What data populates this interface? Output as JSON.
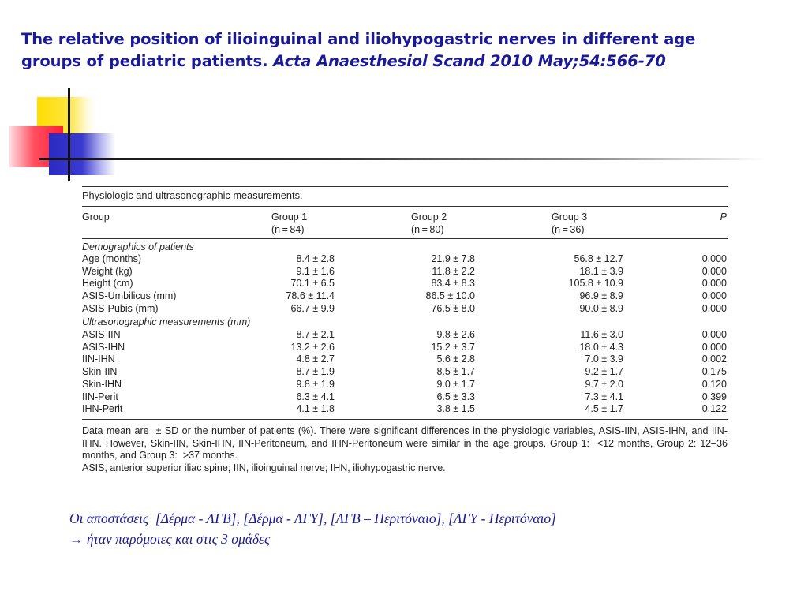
{
  "title": {
    "line1": "The relative position of ilioinguinal and iliohypogastric nerves in different age",
    "line2_plain": "groups of pediatric patients. ",
    "line2_citation": "Acta Anaesthesiol Scand 2010 May;54:566-70"
  },
  "table": {
    "caption": "Physiologic and ultrasonographic measurements.",
    "headers": {
      "group": "Group",
      "g1": "Group 1",
      "g1_n": "(n = 84)",
      "g2": "Group 2",
      "g2_n": "(n = 80)",
      "g3": "Group 3",
      "g3_n": "(n = 36)",
      "p": "P"
    },
    "section1": "Demographics of patients",
    "rows1": [
      [
        "Age (months)",
        "8.4 ± 2.8",
        "21.9 ± 7.8",
        "56.8 ± 12.7",
        "0.000"
      ],
      [
        "Weight (kg)",
        "9.1 ± 1.6",
        "11.8 ± 2.2",
        "18.1 ± 3.9",
        "0.000"
      ],
      [
        "Height (cm)",
        "70.1 ± 6.5",
        "83.4 ± 8.3",
        "105.8 ± 10.9",
        "0.000"
      ],
      [
        "ASIS-Umbilicus (mm)",
        "78.6 ± 11.4",
        "86.5 ± 10.0",
        "96.9 ± 8.9",
        "0.000"
      ],
      [
        "ASIS-Pubis (mm)",
        "66.7 ± 9.9",
        "76.5 ± 8.0",
        "90.0 ± 8.9",
        "0.000"
      ]
    ],
    "section2": "Ultrasonographic measurements (mm)",
    "rows2": [
      [
        "ASIS-IIN",
        "8.7 ± 2.1",
        "9.8 ± 2.6",
        "11.6 ± 3.0",
        "0.000"
      ],
      [
        "ASIS-IHN",
        "13.2 ± 2.6",
        "15.2 ± 3.7",
        "18.0 ± 4.3",
        "0.000"
      ],
      [
        "IIN-IHN",
        "4.8 ± 2.7",
        "5.6 ± 2.8",
        "7.0 ± 3.9",
        "0.002"
      ],
      [
        "Skin-IIN",
        "8.7 ± 1.9",
        "8.5 ± 1.7",
        "9.2 ± 1.7",
        "0.175"
      ],
      [
        "Skin-IHN",
        "9.8 ± 1.9",
        "9.0 ± 1.7",
        "9.7 ± 2.0",
        "0.120"
      ],
      [
        "IIN-Perit",
        "6.3 ± 4.1",
        "6.5 ± 3.3",
        "7.3 ± 4.1",
        "0.399"
      ],
      [
        "IHN-Perit",
        "4.1 ± 1.8",
        "3.8 ± 1.5",
        "4.5 ± 1.7",
        "0.122"
      ]
    ],
    "footnote1": "Data mean are  ± SD or the number of patients (%). There were significant differences in the physiologic variables, ASIS-IIN, ASIS-IHN, and IIN-IHN. However, Skin-IIN, Skin-IHN, IIN-Peritoneum, and IHN-Peritoneum were similar in the age groups. Group 1:  <12 months, Group 2: 12–36 months, and Group 3:  >37 months.",
    "footnote2": "ASIS, anterior superior iliac spine; IIN, ilioinguinal nerve; IHN, iliohypogastric nerve."
  },
  "greek_note": {
    "line1": "Οι αποστάσεις  [Δέρμα - ΛΓΒ], [Δέρμα - ΛΓΥ], [ΛΓΒ – Περιτόναιο], [ΛΓΥ - Περιτόναιο]",
    "line2": "→ ήταν παρόμοιες και στις 3 ομάδες"
  }
}
